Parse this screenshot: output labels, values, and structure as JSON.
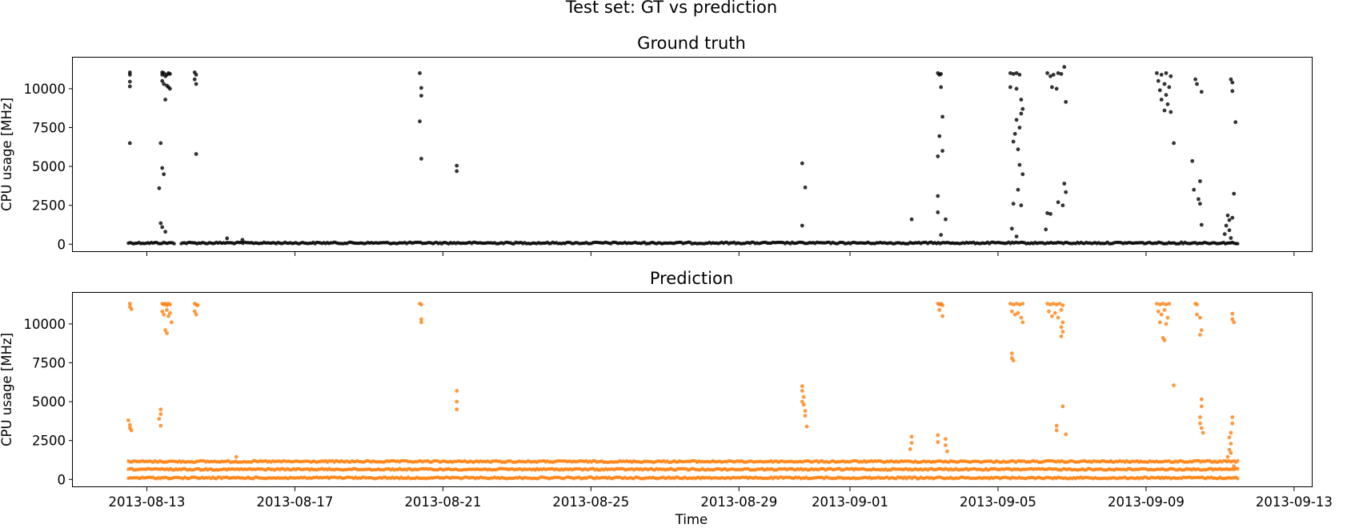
{
  "figure": {
    "suptitle": "Test set: GT vs prediction",
    "xlabel": "Time"
  },
  "chart_data": [
    {
      "type": "scatter",
      "title": "Ground truth",
      "xlabel": "",
      "ylabel": "CPU usage [MHz]",
      "color": "#000000",
      "x_tick_labels": [],
      "x_range": [
        "2013-08-11T00:00",
        "2013-09-13T12:00"
      ],
      "yticks": [
        "0",
        "2500",
        "5000",
        "7500",
        "10000"
      ],
      "ylim": [
        -500,
        12000
      ],
      "baseline": {
        "value": 80,
        "from": "2013-08-12T12:00",
        "to": "2013-09-11T12:00",
        "gaps": [
          [
            "2013-08-13T18:00",
            "2013-08-13T22:00"
          ]
        ]
      },
      "points": [
        [
          "2013-08-12T13:00",
          11050
        ],
        [
          "2013-08-12T13:00",
          10900
        ],
        [
          "2013-08-12T13:00",
          10450
        ],
        [
          "2013-08-12T13:00",
          10150
        ],
        [
          "2013-08-12T13:00",
          6500
        ],
        [
          "2013-08-13T10:00",
          11050
        ],
        [
          "2013-08-13T10:00",
          10900
        ],
        [
          "2013-08-13T11:00",
          11000
        ],
        [
          "2013-08-13T12:00",
          10800
        ],
        [
          "2013-08-13T13:00",
          10900
        ],
        [
          "2013-08-13T14:00",
          11000
        ],
        [
          "2013-08-13T15:00",
          10950
        ],
        [
          "2013-08-13T10:00",
          10500
        ],
        [
          "2013-08-13T11:00",
          10300
        ],
        [
          "2013-08-13T13:00",
          10200
        ],
        [
          "2013-08-13T14:00",
          10100
        ],
        [
          "2013-08-13T15:00",
          10000
        ],
        [
          "2013-08-13T12:00",
          9300
        ],
        [
          "2013-08-13T09:00",
          6500
        ],
        [
          "2013-08-13T10:00",
          4900
        ],
        [
          "2013-08-13T11:00",
          4500
        ],
        [
          "2013-08-13T08:00",
          3600
        ],
        [
          "2013-08-13T09:00",
          1350
        ],
        [
          "2013-08-13T10:00",
          1100
        ],
        [
          "2013-08-13T12:00",
          800
        ],
        [
          "2013-08-14T07:00",
          11050
        ],
        [
          "2013-08-14T08:00",
          10900
        ],
        [
          "2013-08-14T07:00",
          10600
        ],
        [
          "2013-08-14T08:00",
          10300
        ],
        [
          "2013-08-14T08:00",
          5800
        ],
        [
          "2013-08-15T04:00",
          380
        ],
        [
          "2013-08-15T14:00",
          280
        ],
        [
          "2013-08-20T09:00",
          11000
        ],
        [
          "2013-08-20T10:00",
          10050
        ],
        [
          "2013-08-20T10:00",
          9550
        ],
        [
          "2013-08-20T09:00",
          7900
        ],
        [
          "2013-08-20T10:00",
          5500
        ],
        [
          "2013-08-21T09:00",
          5050
        ],
        [
          "2013-08-21T09:00",
          4700
        ],
        [
          "2013-08-30T17:00",
          5200
        ],
        [
          "2013-08-30T19:00",
          3650
        ],
        [
          "2013-08-30T17:00",
          1200
        ],
        [
          "2013-09-02T16:00",
          1600
        ],
        [
          "2013-09-03T09:00",
          11000
        ],
        [
          "2013-09-03T10:00",
          10900
        ],
        [
          "2013-09-03T11:00",
          10950
        ],
        [
          "2013-09-03T11:00",
          10100
        ],
        [
          "2013-09-03T12:00",
          8200
        ],
        [
          "2013-09-03T10:00",
          6950
        ],
        [
          "2013-09-03T12:00",
          6000
        ],
        [
          "2013-09-03T09:00",
          5650
        ],
        [
          "2013-09-03T09:00",
          3100
        ],
        [
          "2013-09-03T09:00",
          2050
        ],
        [
          "2013-09-03T14:00",
          1600
        ],
        [
          "2013-09-03T11:00",
          600
        ],
        [
          "2013-09-05T08:00",
          11000
        ],
        [
          "2013-09-05T10:00",
          10950
        ],
        [
          "2013-09-05T12:00",
          11000
        ],
        [
          "2013-09-05T14:00",
          10900
        ],
        [
          "2013-09-05T08:00",
          10100
        ],
        [
          "2013-09-05T12:00",
          10000
        ],
        [
          "2013-09-05T15:00",
          9300
        ],
        [
          "2013-09-05T16:00",
          8700
        ],
        [
          "2013-09-05T15:00",
          8400
        ],
        [
          "2013-09-05T12:00",
          8000
        ],
        [
          "2013-09-05T14:00",
          7500
        ],
        [
          "2013-09-05T11:00",
          7100
        ],
        [
          "2013-09-05T10:00",
          6600
        ],
        [
          "2013-09-05T13:00",
          6100
        ],
        [
          "2013-09-05T14:00",
          5100
        ],
        [
          "2013-09-05T16:00",
          4500
        ],
        [
          "2013-09-05T13:00",
          3500
        ],
        [
          "2013-09-05T10:00",
          2600
        ],
        [
          "2013-09-05T15:00",
          2500
        ],
        [
          "2013-09-05T09:00",
          1000
        ],
        [
          "2013-09-05T12:00",
          500
        ],
        [
          "2013-09-06T08:00",
          11000
        ],
        [
          "2013-09-06T10:00",
          10800
        ],
        [
          "2013-09-06T12:00",
          10900
        ],
        [
          "2013-09-06T15:00",
          11000
        ],
        [
          "2013-09-06T17:00",
          10950
        ],
        [
          "2013-09-06T19:00",
          11400
        ],
        [
          "2013-09-06T11:00",
          10100
        ],
        [
          "2013-09-06T14:00",
          10000
        ],
        [
          "2013-09-06T20:00",
          9150
        ],
        [
          "2013-09-06T19:00",
          3900
        ],
        [
          "2013-09-06T20:00",
          3350
        ],
        [
          "2013-09-06T08:00",
          2000
        ],
        [
          "2013-09-06T10:00",
          1950
        ],
        [
          "2013-09-06T15:00",
          2700
        ],
        [
          "2013-09-06T18:00",
          2500
        ],
        [
          "2013-09-06T07:00",
          950
        ],
        [
          "2013-09-09T07:00",
          11000
        ],
        [
          "2013-09-09T10:00",
          10900
        ],
        [
          "2013-09-09T13:00",
          11000
        ],
        [
          "2013-09-09T16:00",
          10800
        ],
        [
          "2013-09-09T08:00",
          10500
        ],
        [
          "2013-09-09T12:00",
          10300
        ],
        [
          "2013-09-09T15:00",
          10100
        ],
        [
          "2013-09-09T09:00",
          9900
        ],
        [
          "2013-09-09T13:00",
          9600
        ],
        [
          "2013-09-09T10:00",
          9300
        ],
        [
          "2013-09-09T14:00",
          9000
        ],
        [
          "2013-09-09T12:00",
          8600
        ],
        [
          "2013-09-09T16:00",
          8500
        ],
        [
          "2013-09-09T18:00",
          6500
        ],
        [
          "2013-09-10T08:00",
          10600
        ],
        [
          "2013-09-10T09:00",
          10300
        ],
        [
          "2013-09-10T06:00",
          5350
        ],
        [
          "2013-09-10T07:00",
          3500
        ],
        [
          "2013-09-10T11:00",
          4050
        ],
        [
          "2013-09-10T10:00",
          2900
        ],
        [
          "2013-09-10T11:00",
          2600
        ],
        [
          "2013-09-10T12:00",
          1250
        ],
        [
          "2013-09-10T12:00",
          9800
        ],
        [
          "2013-09-11T07:00",
          10600
        ],
        [
          "2013-09-11T08:00",
          10400
        ],
        [
          "2013-09-11T08:00",
          9850
        ],
        [
          "2013-09-11T10:00",
          7850
        ],
        [
          "2013-09-11T09:00",
          3250
        ],
        [
          "2013-09-11T05:00",
          1850
        ],
        [
          "2013-09-11T06:00",
          1550
        ],
        [
          "2013-09-11T04:00",
          1200
        ],
        [
          "2013-09-11T08:00",
          1700
        ],
        [
          "2013-09-11T06:00",
          900
        ],
        [
          "2013-09-11T03:00",
          650
        ],
        [
          "2013-09-11T07:00",
          400
        ]
      ]
    },
    {
      "type": "scatter",
      "title": "Prediction",
      "xlabel": "Time",
      "ylabel": "CPU usage [MHz]",
      "color": "#ff7f0e",
      "x_tick_labels": [
        "2013-08-13",
        "2013-08-17",
        "2013-08-21",
        "2013-08-25",
        "2013-08-29",
        "2013-09-01",
        "2013-09-05",
        "2013-09-09",
        "2013-09-13"
      ],
      "x_range": [
        "2013-08-11T00:00",
        "2013-09-13T12:00"
      ],
      "yticks": [
        "0",
        "2500",
        "5000",
        "7500",
        "10000"
      ],
      "ylim": [
        -500,
        12000
      ],
      "bands": [
        {
          "value": 1150,
          "from": "2013-08-12T12:00",
          "to": "2013-09-11T12:00"
        },
        {
          "value": 650,
          "from": "2013-08-12T12:00",
          "to": "2013-09-11T12:00"
        },
        {
          "value": 100,
          "from": "2013-08-12T12:00",
          "to": "2013-09-11T12:00"
        }
      ],
      "points": [
        [
          "2013-08-12T13:00",
          11300
        ],
        [
          "2013-08-12T13:00",
          11100
        ],
        [
          "2013-08-12T14:00",
          10950
        ],
        [
          "2013-08-12T12:00",
          3800
        ],
        [
          "2013-08-12T13:00",
          3500
        ],
        [
          "2013-08-12T13:00",
          3300
        ],
        [
          "2013-08-12T14:00",
          3150
        ],
        [
          "2013-08-13T10:00",
          11300
        ],
        [
          "2013-08-13T11:00",
          11250
        ],
        [
          "2013-08-13T12:00",
          11300
        ],
        [
          "2013-08-13T13:00",
          11200
        ],
        [
          "2013-08-13T14:00",
          11300
        ],
        [
          "2013-08-13T15:00",
          11250
        ],
        [
          "2013-08-13T10:00",
          10800
        ],
        [
          "2013-08-13T11:00",
          10600
        ],
        [
          "2013-08-13T13:00",
          10900
        ],
        [
          "2013-08-13T14:00",
          10500
        ],
        [
          "2013-08-13T15:00",
          10700
        ],
        [
          "2013-08-13T16:00",
          10100
        ],
        [
          "2013-08-13T12:00",
          9600
        ],
        [
          "2013-08-13T13:00",
          9400
        ],
        [
          "2013-08-13T09:00",
          4500
        ],
        [
          "2013-08-13T09:00",
          4200
        ],
        [
          "2013-08-13T08:00",
          3900
        ],
        [
          "2013-08-13T09:00",
          3450
        ],
        [
          "2013-08-14T07:00",
          11300
        ],
        [
          "2013-08-14T08:00",
          11250
        ],
        [
          "2013-08-14T09:00",
          11200
        ],
        [
          "2013-08-14T07:00",
          10800
        ],
        [
          "2013-08-14T08:00",
          10600
        ],
        [
          "2013-08-15T10:00",
          1450
        ],
        [
          "2013-08-20T09:00",
          11300
        ],
        [
          "2013-08-20T10:00",
          11250
        ],
        [
          "2013-08-20T10:00",
          10300
        ],
        [
          "2013-08-20T10:00",
          10100
        ],
        [
          "2013-08-21T09:00",
          5700
        ],
        [
          "2013-08-21T09:00",
          5000
        ],
        [
          "2013-08-21T09:00",
          4500
        ],
        [
          "2013-08-30T17:00",
          6000
        ],
        [
          "2013-08-30T17:00",
          5700
        ],
        [
          "2013-08-30T18:00",
          5300
        ],
        [
          "2013-08-30T17:00",
          5000
        ],
        [
          "2013-08-30T18:00",
          4800
        ],
        [
          "2013-08-30T19:00",
          4400
        ],
        [
          "2013-08-30T19:00",
          4100
        ],
        [
          "2013-08-30T20:00",
          3400
        ],
        [
          "2013-09-02T16:00",
          2750
        ],
        [
          "2013-09-02T16:00",
          2350
        ],
        [
          "2013-09-02T15:00",
          1950
        ],
        [
          "2013-09-03T09:00",
          11300
        ],
        [
          "2013-09-03T10:00",
          11250
        ],
        [
          "2013-09-03T11:00",
          11300
        ],
        [
          "2013-09-03T12:00",
          11200
        ],
        [
          "2013-09-03T10:00",
          10900
        ],
        [
          "2013-09-03T12:00",
          10500
        ],
        [
          "2013-09-03T09:00",
          2850
        ],
        [
          "2013-09-03T09:00",
          2400
        ],
        [
          "2013-09-03T14:00",
          2600
        ],
        [
          "2013-09-03T14:00",
          2200
        ],
        [
          "2013-09-03T15:00",
          1800
        ],
        [
          "2013-09-05T08:00",
          11300
        ],
        [
          "2013-09-05T10:00",
          11250
        ],
        [
          "2013-09-05T12:00",
          11300
        ],
        [
          "2013-09-05T14:00",
          11250
        ],
        [
          "2013-09-05T16:00",
          11300
        ],
        [
          "2013-09-05T09:00",
          10800
        ],
        [
          "2013-09-05T11:00",
          10600
        ],
        [
          "2013-09-05T13:00",
          10700
        ],
        [
          "2013-09-05T15:00",
          10400
        ],
        [
          "2013-09-05T16:00",
          10100
        ],
        [
          "2013-09-05T09:00",
          8100
        ],
        [
          "2013-09-05T09:00",
          7800
        ],
        [
          "2013-09-05T10:00",
          7650
        ],
        [
          "2013-09-06T08:00",
          11300
        ],
        [
          "2013-09-06T10:00",
          11250
        ],
        [
          "2013-09-06T12:00",
          11300
        ],
        [
          "2013-09-06T14:00",
          11250
        ],
        [
          "2013-09-06T16:00",
          11300
        ],
        [
          "2013-09-06T18:00",
          11200
        ],
        [
          "2013-09-06T09:00",
          10800
        ],
        [
          "2013-09-06T11:00",
          10500
        ],
        [
          "2013-09-06T13:00",
          10700
        ],
        [
          "2013-09-06T15:00",
          10400
        ],
        [
          "2013-09-06T17:00",
          10900
        ],
        [
          "2013-09-06T18:00",
          10100
        ],
        [
          "2013-09-06T17:00",
          9800
        ],
        [
          "2013-09-06T18:00",
          9500
        ],
        [
          "2013-09-06T17:00",
          9200
        ],
        [
          "2013-09-06T18:00",
          4700
        ],
        [
          "2013-09-06T14:00",
          3450
        ],
        [
          "2013-09-06T14:00",
          3150
        ],
        [
          "2013-09-06T20:00",
          2900
        ],
        [
          "2013-09-09T07:00",
          11300
        ],
        [
          "2013-09-09T09:00",
          11250
        ],
        [
          "2013-09-09T11:00",
          11300
        ],
        [
          "2013-09-09T13:00",
          11250
        ],
        [
          "2013-09-09T15:00",
          11300
        ],
        [
          "2013-09-09T08:00",
          10800
        ],
        [
          "2013-09-09T10:00",
          10600
        ],
        [
          "2013-09-09T12:00",
          10900
        ],
        [
          "2013-09-09T14:00",
          10400
        ],
        [
          "2013-09-09T09:00",
          10100
        ],
        [
          "2013-09-09T13:00",
          10000
        ],
        [
          "2013-09-09T11:00",
          9100
        ],
        [
          "2013-09-09T12:00",
          8950
        ],
        [
          "2013-09-09T18:00",
          6050
        ],
        [
          "2013-09-10T08:00",
          11300
        ],
        [
          "2013-09-10T09:00",
          11250
        ],
        [
          "2013-09-10T09:00",
          10600
        ],
        [
          "2013-09-10T11:00",
          10400
        ],
        [
          "2013-09-10T12:00",
          9600
        ],
        [
          "2013-09-10T11:00",
          9300
        ],
        [
          "2013-09-10T12:00",
          5150
        ],
        [
          "2013-09-10T12:00",
          4700
        ],
        [
          "2013-09-10T11:00",
          4000
        ],
        [
          "2013-09-10T11:00",
          3600
        ],
        [
          "2013-09-10T12:00",
          3300
        ],
        [
          "2013-09-10T13:00",
          3000
        ],
        [
          "2013-09-11T08:00",
          10650
        ],
        [
          "2013-09-11T08:00",
          10300
        ],
        [
          "2013-09-11T09:00",
          10100
        ],
        [
          "2013-09-11T08:00",
          4000
        ],
        [
          "2013-09-11T08:00",
          3600
        ],
        [
          "2013-09-11T07:00",
          3000
        ],
        [
          "2013-09-11T06:00",
          2700
        ],
        [
          "2013-09-11T07:00",
          2300
        ],
        [
          "2013-09-11T06:00",
          1900
        ],
        [
          "2013-09-11T07:00",
          1700
        ],
        [
          "2013-09-11T05:00",
          1450
        ],
        [
          "2013-09-11T09:00",
          850
        ]
      ]
    }
  ]
}
